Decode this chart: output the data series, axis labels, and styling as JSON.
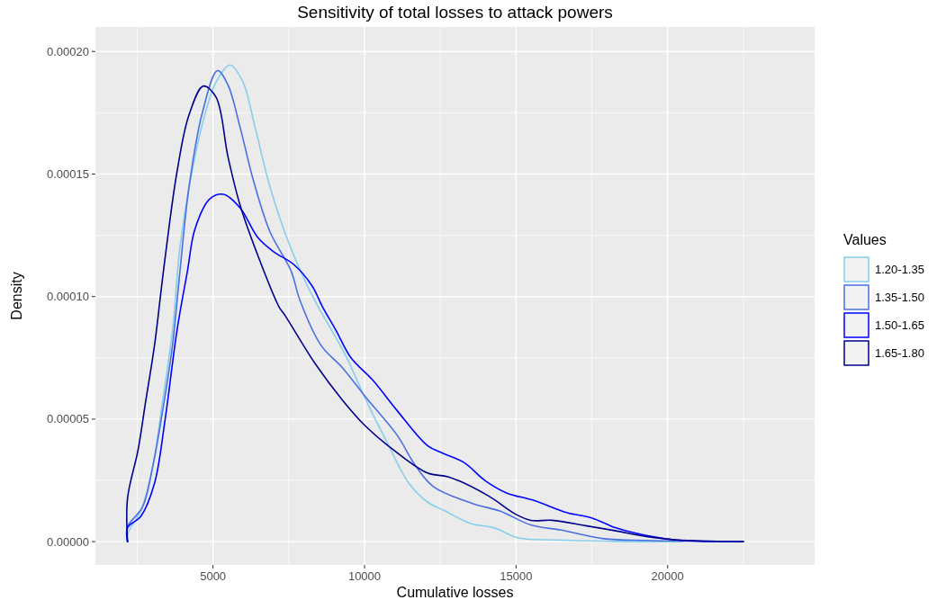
{
  "chart_data": {
    "type": "line",
    "title": "Sensitivity of total losses to attack powers",
    "xlabel": "Cumulative losses",
    "ylabel": "Density",
    "legend_title": "Values",
    "legend": "right",
    "grid": true,
    "line_style": "solid",
    "xlim": [
      1120,
      24850
    ],
    "xticks": [
      5000,
      10000,
      15000,
      20000
    ],
    "ylim": [
      -9.5e-06,
      0.00021
    ],
    "yticks": [
      {
        "value": 0,
        "label": "0.00000"
      },
      {
        "value": 5e-05,
        "label": "0.00005"
      },
      {
        "value": 0.0001,
        "label": "0.00010"
      },
      {
        "value": 0.00015,
        "label": "0.00015"
      },
      {
        "value": 0.0002,
        "label": "0.00020"
      }
    ],
    "series": [
      {
        "name": "1.20-1.35",
        "color": "#87ceeb",
        "x": [
          2180,
          2180,
          2624,
          3020,
          3317,
          3664,
          3911,
          4307,
          4703,
          5099,
          5564,
          5990,
          6386,
          6881,
          7475,
          8069,
          8465,
          9356,
          10070,
          10772,
          11474,
          12076,
          12678,
          13481,
          14283,
          15085,
          16289,
          17793,
          19298,
          20500
        ],
        "values": [
          0,
          3.1e-06,
          1.28e-05,
          3.12e-05,
          5.56e-05,
          8.62e-05,
          0.0001203,
          0.0001509,
          0.0001729,
          0.0001875,
          0.0001945,
          0.0001875,
          0.0001692,
          0.0001447,
          0.0001227,
          0.0001056,
          9.6e-05,
          7.64e-05,
          5.72e-05,
          3.98e-05,
          2.36e-05,
          1.62e-05,
          1.24e-05,
          7.5e-06,
          5.6e-06,
          1.5e-06,
          7e-07,
          2e-07,
          0,
          0
        ]
      },
      {
        "name": "1.35-1.50",
        "color": "#4a6fe3",
        "x": [
          2180,
          2180,
          2674,
          3020,
          3367,
          3664,
          3911,
          4208,
          4654,
          5149,
          5495,
          5891,
          6337,
          6881,
          7574,
          7871,
          8564,
          9268,
          10070,
          11073,
          11675,
          12277,
          13581,
          14483,
          15487,
          16490,
          17894,
          19298,
          21304,
          22000
        ],
        "values": [
          0,
          6.1e-06,
          1.41e-05,
          3.12e-05,
          5.56e-05,
          8.01e-05,
          0.0001106,
          0.0001447,
          0.0001753,
          0.0001922,
          0.0001863,
          0.0001692,
          0.0001472,
          0.0001264,
          0.0001105,
          9.84e-05,
          8.01e-05,
          7.1e-05,
          5.85e-05,
          4.35e-05,
          3.11e-05,
          2.24e-05,
          1.55e-05,
          1.24e-05,
          6.8e-06,
          4.7e-06,
          1.2e-06,
          5e-07,
          1e-07,
          0
        ]
      },
      {
        "name": "1.50-1.65",
        "color": "#0000ff",
        "x": [
          2180,
          2180,
          2624,
          3070,
          3416,
          3812,
          4159,
          4406,
          4901,
          5347,
          5891,
          6485,
          6980,
          7673,
          8267,
          8614,
          9059,
          9554,
          10271,
          11073,
          12076,
          12577,
          13280,
          13982,
          14684,
          15587,
          16690,
          17492,
          18295,
          19298,
          20301,
          22500
        ],
        "values": [
          0,
          5.7e-06,
          1.04e-05,
          2.38e-05,
          4.95e-05,
          8.62e-05,
          0.0001106,
          0.0001276,
          0.0001399,
          0.0001417,
          0.0001362,
          0.000124,
          0.0001185,
          0.000113,
          0.0001044,
          9.58e-05,
          8.62e-05,
          7.5e-05,
          6.59e-05,
          5.35e-05,
          3.92e-05,
          3.61e-05,
          3.23e-05,
          2.49e-05,
          1.99e-05,
          1.68e-05,
          1.18e-05,
          9.7e-06,
          5.6e-06,
          2.5e-06,
          7e-07,
          0
        ]
      },
      {
        "name": "1.65-1.80",
        "color": "#00008b",
        "x": [
          2180,
          2180,
          2525,
          2773,
          3070,
          3367,
          3812,
          4208,
          4683,
          5099,
          5495,
          5891,
          6485,
          7178,
          7376,
          8366,
          9268,
          10020,
          10772,
          12076,
          12778,
          14082,
          14985,
          15487,
          16189,
          17292,
          18295,
          19298,
          20301,
          22500
        ],
        "values": [
          0,
          1.77e-05,
          3.73e-05,
          5.68e-05,
          8.01e-05,
          0.0001106,
          0.0001509,
          0.0001741,
          0.0001859,
          0.0001814,
          0.000157,
          0.0001374,
          0.0001166,
          9.58e-05,
          9.23e-05,
          7.27e-05,
          5.78e-05,
          4.73e-05,
          3.92e-05,
          2.8e-05,
          2.64e-05,
          1.87e-05,
          1.12e-05,
          8.7e-06,
          8.7e-06,
          6.5e-06,
          4.4e-06,
          2.1e-06,
          7e-07,
          0
        ]
      }
    ]
  }
}
